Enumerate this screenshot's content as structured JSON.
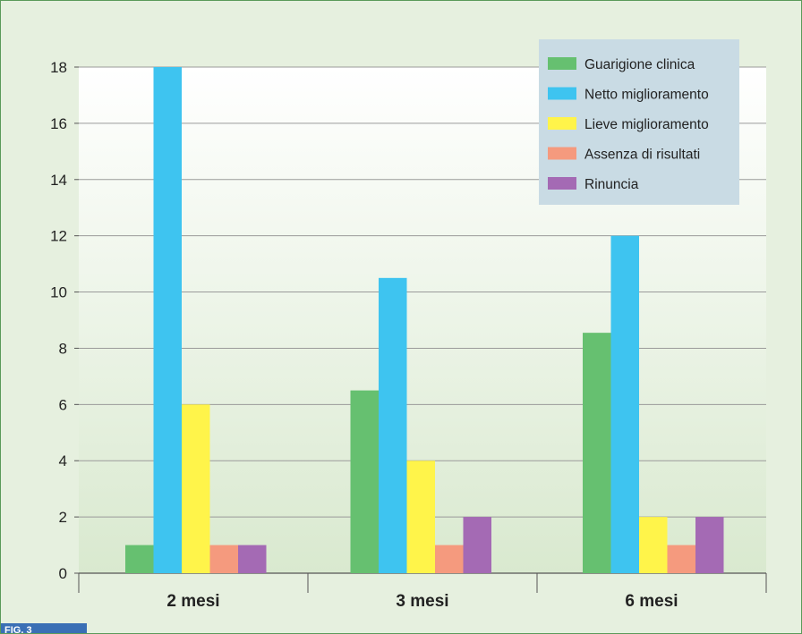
{
  "figure_tab": "FIG. 3",
  "colors": {
    "background": "#e6f0df",
    "plot_top": "#ffffff",
    "plot_bottom": "#d9e9cf",
    "frame_border": "#5a9a5a",
    "grid": "#9a9a9a",
    "legend_bg": "#c9dbe4",
    "fig_tab": "#3a6fb5"
  },
  "chart_data": {
    "type": "bar",
    "categories": [
      "2 mesi",
      "3 mesi",
      "6 mesi"
    ],
    "series": [
      {
        "name": "Guarigione clinica",
        "color": "#66c070",
        "values": [
          1,
          6.5,
          8.55
        ]
      },
      {
        "name": "Netto miglioramento",
        "color": "#3ec4f0",
        "values": [
          18,
          10.5,
          12
        ]
      },
      {
        "name": "Lieve miglioramento",
        "color": "#fff44a",
        "values": [
          6,
          4,
          2
        ]
      },
      {
        "name": "Assenza di risultati",
        "color": "#f59a7e",
        "values": [
          1,
          1,
          1
        ]
      },
      {
        "name": "Rinuncia",
        "color": "#a46ab4",
        "values": [
          1,
          2,
          2
        ]
      }
    ],
    "ylim": [
      0,
      18
    ],
    "yticks": [
      0,
      2,
      4,
      6,
      8,
      10,
      12,
      14,
      16,
      18
    ],
    "grid": true,
    "legend_position": "top-right"
  }
}
